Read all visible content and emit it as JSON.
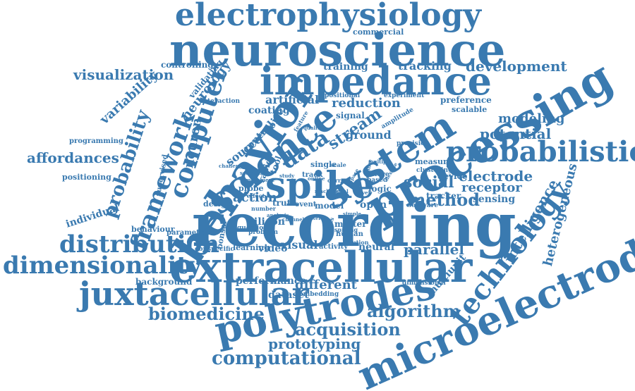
{
  "color": "#3a7ab0",
  "words": [
    "electrophysiology",
    "neuroscience",
    "impedance",
    "recording",
    "behavior",
    "science",
    "processing",
    "system",
    "spike",
    "probabilistic",
    "extracellular",
    "microelectrode",
    "polytrodes",
    "juxtacellular",
    "dimensionality",
    "distribution",
    "computer",
    "framework",
    "technology",
    "probability",
    "data",
    "stream",
    "computational",
    "acquisition",
    "prototyping",
    "biomedicine",
    "algorithm",
    "visualization",
    "development",
    "tracking",
    "affordances",
    "method",
    "social",
    "electrode",
    "receptor",
    "potential",
    "modeling",
    "intelligence",
    "heterogeneous",
    "multiunit",
    "different",
    "performance",
    "background",
    "dataset",
    "parallel",
    "visual",
    "video",
    "silicon",
    "variability",
    "neuron",
    "neurology",
    "validating",
    "controlling",
    "commercial",
    "training",
    "artificial",
    "reduction",
    "coating",
    "source",
    "control",
    "noise",
    "ground",
    "action",
    "truth",
    "model",
    "open",
    "logic",
    "design",
    "probe",
    "rapid",
    "tool",
    "learning",
    "sensing",
    "scalable",
    "preference",
    "experiment",
    "positional",
    "signal",
    "amplitude",
    "measure",
    "clustering",
    "device",
    "tracker",
    "software",
    "precision",
    "individual",
    "behaviour",
    "parametric",
    "positioning",
    "programming",
    "supervised",
    "interaction",
    "conspecific",
    "bonsai",
    "question",
    "problem",
    "neural",
    "activity",
    "solution",
    "human",
    "matter",
    "spiking",
    "dimensional",
    "event",
    "number",
    "embedding",
    "track",
    "single",
    "scale",
    "based",
    "nature",
    "feature",
    "quality",
    "current",
    "effect",
    "movement",
    "challenge",
    "scientific",
    "study",
    "paired",
    "research",
    "whereas",
    "flexible",
    "multiple",
    "simple",
    "space",
    "response",
    "signal",
    "machine",
    "level",
    "analysis",
    "channel",
    "filter",
    "online"
  ]
}
